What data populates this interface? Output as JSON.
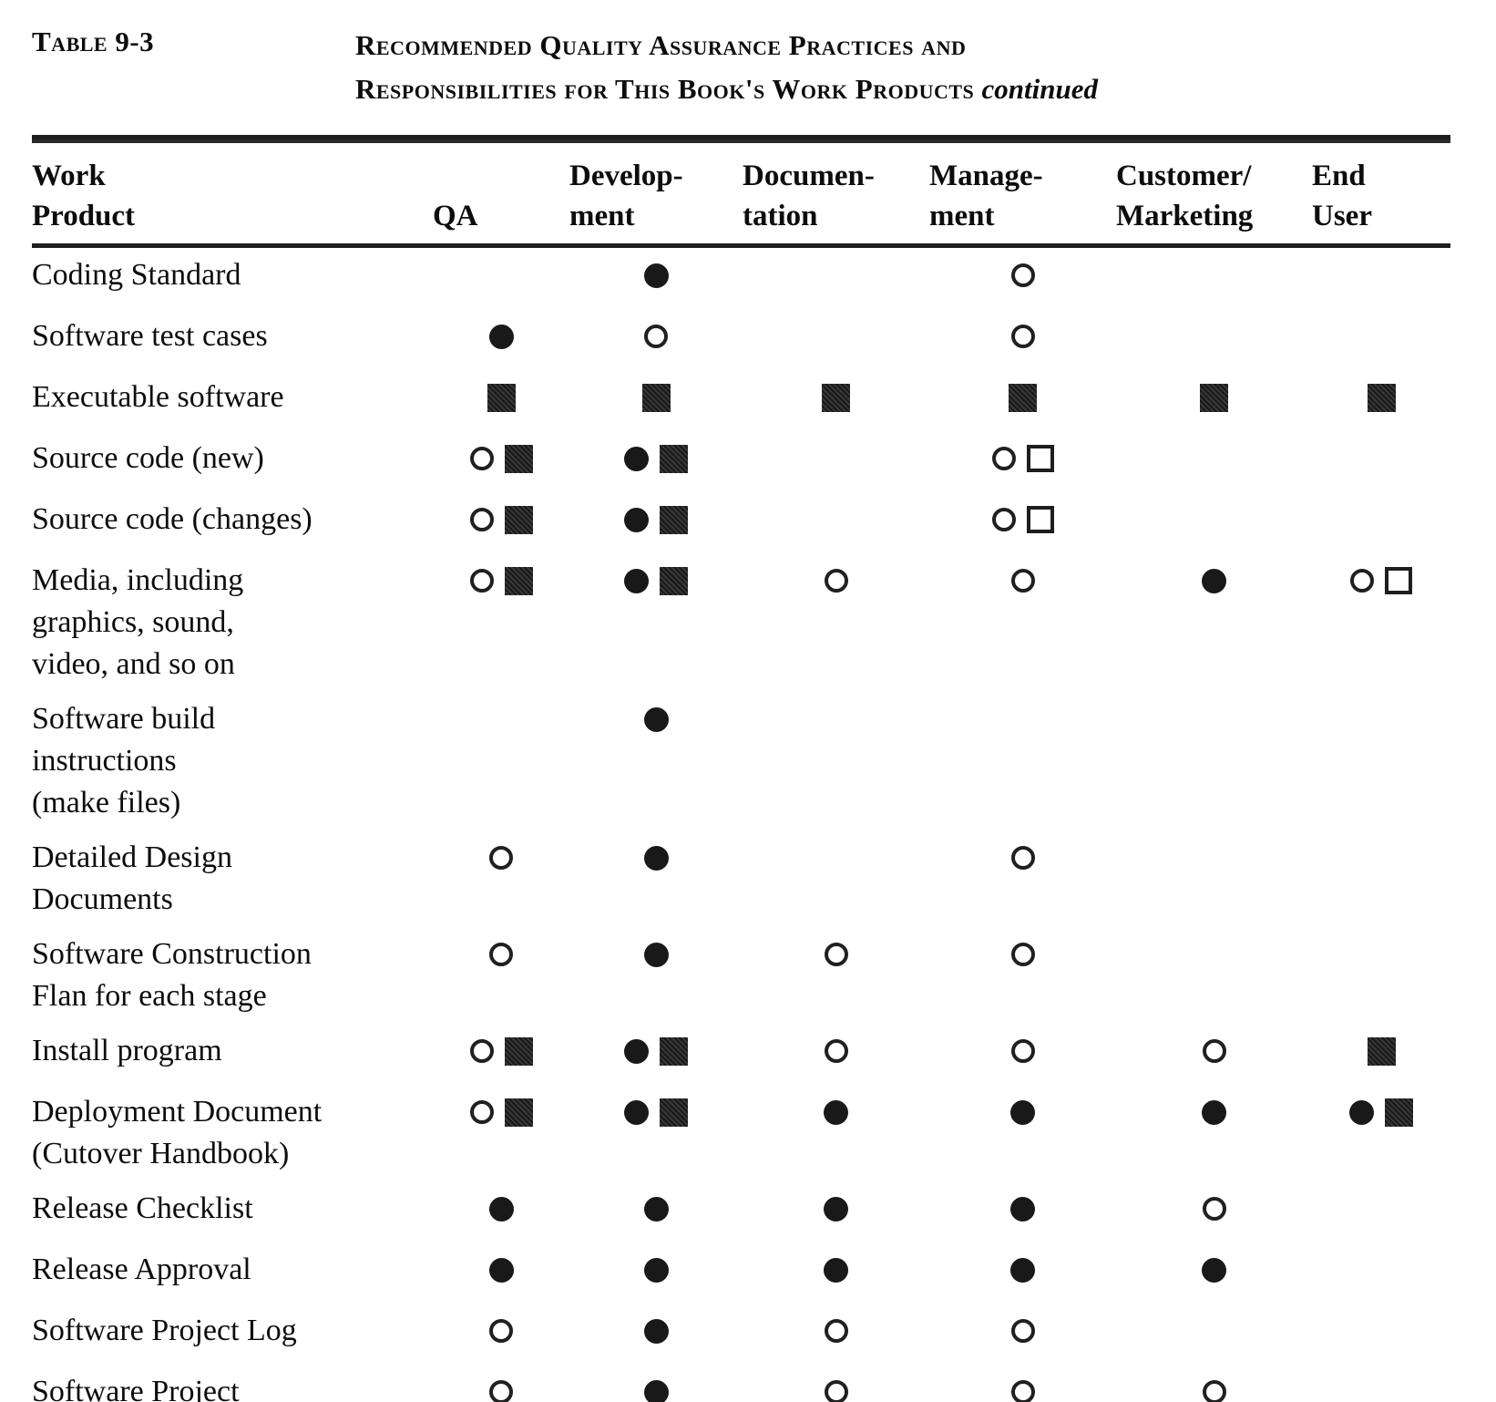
{
  "document": {
    "table_label": "Table 9-3",
    "title_line1": "Recommended Quality Assurance Practices and",
    "title_line2": "Responsibilities for This Book's Work Products",
    "title_suffix": "continued"
  },
  "colors": {
    "ink": "#1b1b1b",
    "paper": "#ffffff"
  },
  "table": {
    "column_keys": [
      "qa",
      "development",
      "documentation",
      "management",
      "customer_marketing",
      "end_user"
    ],
    "columns": [
      {
        "line1": "Work",
        "line2": "Product"
      },
      {
        "line1": "",
        "line2": "QA"
      },
      {
        "line1": "Develop-",
        "line2": "ment"
      },
      {
        "line1": "Documen-",
        "line2": "tation"
      },
      {
        "line1": "Manage-",
        "line2": "ment"
      },
      {
        "line1": "Customer/",
        "line2": "Marketing"
      },
      {
        "line1": "End",
        "line2": "User"
      }
    ],
    "symbol_glyphs": {
      "filled-circle": "●",
      "open-circle": "○",
      "filled-square": "■",
      "open-square": "□"
    },
    "rows": [
      {
        "product": "Coding Standard",
        "cells": {
          "qa": [],
          "development": [
            "filled-circle"
          ],
          "documentation": [],
          "management": [
            "open-circle"
          ],
          "customer_marketing": [],
          "end_user": []
        }
      },
      {
        "product": "Software test cases",
        "cells": {
          "qa": [
            "filled-circle"
          ],
          "development": [
            "open-circle"
          ],
          "documentation": [],
          "management": [
            "open-circle"
          ],
          "customer_marketing": [],
          "end_user": []
        }
      },
      {
        "product": "Executable software",
        "cells": {
          "qa": [
            "filled-square"
          ],
          "development": [
            "filled-square"
          ],
          "documentation": [
            "filled-square"
          ],
          "management": [
            "filled-square"
          ],
          "customer_marketing": [
            "filled-square"
          ],
          "end_user": [
            "filled-square"
          ]
        }
      },
      {
        "product": "Source code (new)",
        "cells": {
          "qa": [
            "open-circle",
            "filled-square"
          ],
          "development": [
            "filled-circle",
            "filled-square"
          ],
          "documentation": [],
          "management": [
            "open-circle",
            "open-square"
          ],
          "customer_marketing": [],
          "end_user": []
        }
      },
      {
        "product": "Source code (changes)",
        "cells": {
          "qa": [
            "open-circle",
            "filled-square"
          ],
          "development": [
            "filled-circle",
            "filled-square"
          ],
          "documentation": [],
          "management": [
            "open-circle",
            "open-square"
          ],
          "customer_marketing": [],
          "end_user": []
        }
      },
      {
        "product": "Media, including\ngraphics, sound,\nvideo, and so on",
        "cells": {
          "qa": [
            "open-circle",
            "filled-square"
          ],
          "development": [
            "filled-circle",
            "filled-square"
          ],
          "documentation": [
            "open-circle"
          ],
          "management": [
            "open-circle"
          ],
          "customer_marketing": [
            "filled-circle"
          ],
          "end_user": [
            "open-circle",
            "open-square"
          ]
        }
      },
      {
        "product": "Software build\ninstructions\n(make files)",
        "cells": {
          "qa": [],
          "development": [
            "filled-circle"
          ],
          "documentation": [],
          "management": [],
          "customer_marketing": [],
          "end_user": []
        }
      },
      {
        "product": "Detailed Design\nDocuments",
        "cells": {
          "qa": [
            "open-circle"
          ],
          "development": [
            "filled-circle"
          ],
          "documentation": [],
          "management": [
            "open-circle"
          ],
          "customer_marketing": [],
          "end_user": []
        }
      },
      {
        "product": "Software Construction\nFlan for each stage",
        "cells": {
          "qa": [
            "open-circle"
          ],
          "development": [
            "filled-circle"
          ],
          "documentation": [
            "open-circle"
          ],
          "management": [
            "open-circle"
          ],
          "customer_marketing": [],
          "end_user": []
        }
      },
      {
        "product": "Install program",
        "cells": {
          "qa": [
            "open-circle",
            "filled-square"
          ],
          "development": [
            "filled-circle",
            "filled-square"
          ],
          "documentation": [
            "open-circle"
          ],
          "management": [
            "open-circle"
          ],
          "customer_marketing": [
            "open-circle"
          ],
          "end_user": [
            "filled-square"
          ]
        }
      },
      {
        "product": "Deployment Document\n(Cutover Handbook)",
        "cells": {
          "qa": [
            "open-circle",
            "filled-square"
          ],
          "development": [
            "filled-circle",
            "filled-square"
          ],
          "documentation": [
            "filled-circle"
          ],
          "management": [
            "filled-circle"
          ],
          "customer_marketing": [
            "filled-circle"
          ],
          "end_user": [
            "filled-circle",
            "filled-square"
          ]
        }
      },
      {
        "product": "Release Checklist",
        "cells": {
          "qa": [
            "filled-circle"
          ],
          "development": [
            "filled-circle"
          ],
          "documentation": [
            "filled-circle"
          ],
          "management": [
            "filled-circle"
          ],
          "customer_marketing": [
            "open-circle"
          ],
          "end_user": []
        }
      },
      {
        "product": "Release Approval",
        "cells": {
          "qa": [
            "filled-circle"
          ],
          "development": [
            "filled-circle"
          ],
          "documentation": [
            "filled-circle"
          ],
          "management": [
            "filled-circle"
          ],
          "customer_marketing": [
            "filled-circle"
          ],
          "end_user": []
        }
      },
      {
        "product": "Software Project Log",
        "cells": {
          "qa": [
            "open-circle"
          ],
          "development": [
            "filled-circle"
          ],
          "documentation": [
            "open-circle"
          ],
          "management": [
            "open-circle"
          ],
          "customer_marketing": [],
          "end_user": []
        }
      },
      {
        "product": "Software Project\nHistory Document",
        "cells": {
          "qa": [
            "open-circle"
          ],
          "development": [
            "filled-circle"
          ],
          "documentation": [
            "open-circle"
          ],
          "management": [
            "open-circle"
          ],
          "customer_marketing": [
            "open-circle"
          ],
          "end_user": []
        }
      }
    ]
  }
}
